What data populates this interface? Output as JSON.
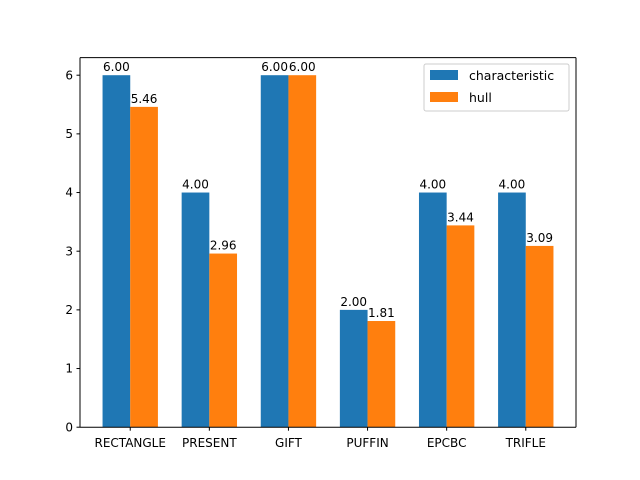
{
  "chart_data": {
    "type": "bar",
    "categories": [
      "RECTANGLE",
      "PRESENT",
      "GIFT",
      "PUFFIN",
      "EPCBC",
      "TRIFLE"
    ],
    "series": [
      {
        "name": "characteristic",
        "color": "#1f77b4",
        "values": [
          6.0,
          4.0,
          6.0,
          2.0,
          4.0,
          4.0
        ],
        "labels": [
          "6.00",
          "4.00",
          "6.00",
          "2.00",
          "4.00",
          "4.00"
        ]
      },
      {
        "name": "hull",
        "color": "#ff7f0e",
        "values": [
          5.46,
          2.96,
          6.0,
          1.81,
          3.44,
          3.09
        ],
        "labels": [
          "5.46",
          "2.96",
          "6.00",
          "1.81",
          "3.44",
          "3.09"
        ]
      }
    ],
    "yticks": [
      0,
      1,
      2,
      3,
      4,
      5,
      6
    ],
    "ytick_labels": [
      "0",
      "1",
      "2",
      "3",
      "4",
      "5",
      "6"
    ],
    "ylim": [
      0,
      6.3
    ],
    "grid": false,
    "legend_position": "top-right"
  }
}
